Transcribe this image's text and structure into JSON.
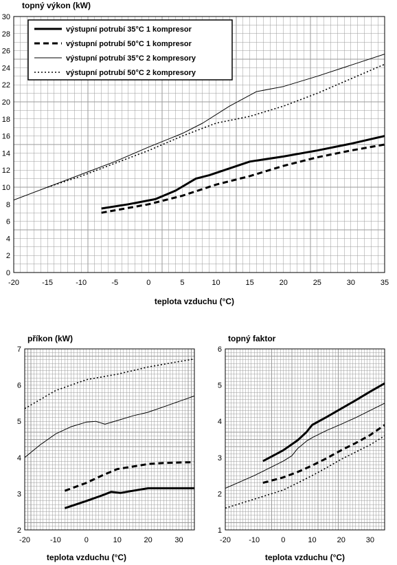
{
  "chart_data": [
    {
      "type": "line",
      "ylabel": "topný výkon (kW)",
      "xlabel": "teplota vzduchu (°C)",
      "xlim": [
        -20,
        35
      ],
      "ylim": [
        0,
        30
      ],
      "x_ticks": [
        -20,
        -15,
        -10,
        -5,
        0,
        5,
        10,
        15,
        20,
        25,
        30,
        35
      ],
      "y_ticks": [
        0,
        2,
        4,
        6,
        8,
        10,
        12,
        14,
        16,
        18,
        20,
        22,
        24,
        26,
        28,
        30
      ],
      "grid": true,
      "legend_position": "top-left",
      "series": [
        {
          "name": "výstupní  potrubí 35°C 1 kompresor",
          "style": "thick-solid",
          "points": [
            [
              -7,
              7.5
            ],
            [
              -3,
              8.0
            ],
            [
              1,
              8.6
            ],
            [
              4,
              9.6
            ],
            [
              7,
              11.0
            ],
            [
              9,
              11.4
            ],
            [
              12,
              12.2
            ],
            [
              15,
              13.0
            ],
            [
              20,
              13.6
            ],
            [
              25,
              14.3
            ],
            [
              30,
              15.1
            ],
            [
              35,
              16.0
            ]
          ]
        },
        {
          "name": "výstupní  potrubí 50°C 1 kompresor",
          "style": "thick-dashed",
          "points": [
            [
              -7,
              7.0
            ],
            [
              0,
              8.0
            ],
            [
              5,
              9.0
            ],
            [
              10,
              10.3
            ],
            [
              15,
              11.3
            ],
            [
              20,
              12.5
            ],
            [
              25,
              13.5
            ],
            [
              30,
              14.3
            ],
            [
              35,
              15.0
            ]
          ]
        },
        {
          "name": "výstupní  potrubí 35°C 2 kompresory",
          "style": "thin-solid",
          "points": [
            [
              -20,
              8.5
            ],
            [
              -10,
              11.5
            ],
            [
              -5,
              13.0
            ],
            [
              0,
              14.7
            ],
            [
              5,
              16.3
            ],
            [
              8,
              17.5
            ],
            [
              12,
              19.5
            ],
            [
              16,
              21.2
            ],
            [
              20,
              21.8
            ],
            [
              25,
              23.0
            ],
            [
              30,
              24.3
            ],
            [
              35,
              25.6
            ]
          ]
        },
        {
          "name": "výstupní  potrubí 50°C 2 kompresory",
          "style": "thin-dotted",
          "points": [
            [
              -15,
              10.0
            ],
            [
              -10,
              11.3
            ],
            [
              -5,
              12.8
            ],
            [
              0,
              14.3
            ],
            [
              5,
              16.0
            ],
            [
              10,
              17.5
            ],
            [
              15,
              18.3
            ],
            [
              20,
              19.5
            ],
            [
              25,
              21.0
            ],
            [
              30,
              22.7
            ],
            [
              35,
              24.4
            ]
          ]
        }
      ]
    },
    {
      "type": "line",
      "ylabel": "příkon (kW)",
      "xlabel": "teplota vzduchu (°C)",
      "xlim": [
        -20,
        35
      ],
      "ylim": [
        2,
        7
      ],
      "x_ticks": [
        -20,
        -10,
        0,
        10,
        20,
        30
      ],
      "y_ticks": [
        2,
        3,
        4,
        5,
        6,
        7
      ],
      "grid": true,
      "series": [
        {
          "style": "thick-solid",
          "points": [
            [
              -7,
              2.6
            ],
            [
              0,
              2.8
            ],
            [
              5,
              2.95
            ],
            [
              8,
              3.05
            ],
            [
              11,
              3.02
            ],
            [
              15,
              3.08
            ],
            [
              20,
              3.15
            ],
            [
              35,
              3.15
            ]
          ]
        },
        {
          "style": "thick-dashed",
          "points": [
            [
              -7,
              3.08
            ],
            [
              0,
              3.3
            ],
            [
              5,
              3.5
            ],
            [
              10,
              3.68
            ],
            [
              15,
              3.75
            ],
            [
              20,
              3.82
            ],
            [
              25,
              3.85
            ],
            [
              35,
              3.87
            ]
          ]
        },
        {
          "style": "thin-solid",
          "points": [
            [
              -20,
              4.0
            ],
            [
              -15,
              4.35
            ],
            [
              -10,
              4.65
            ],
            [
              -5,
              4.85
            ],
            [
              0,
              4.98
            ],
            [
              3,
              5.0
            ],
            [
              6,
              4.92
            ],
            [
              10,
              5.02
            ],
            [
              15,
              5.15
            ],
            [
              20,
              5.25
            ],
            [
              25,
              5.4
            ],
            [
              30,
              5.55
            ],
            [
              35,
              5.7
            ]
          ]
        },
        {
          "style": "thin-dotted",
          "points": [
            [
              -20,
              5.35
            ],
            [
              -10,
              5.85
            ],
            [
              0,
              6.15
            ],
            [
              10,
              6.3
            ],
            [
              20,
              6.5
            ],
            [
              30,
              6.65
            ],
            [
              35,
              6.72
            ]
          ]
        }
      ]
    },
    {
      "type": "line",
      "ylabel": "topný faktor",
      "xlabel": "teplota vzduchu (°C)",
      "xlim": [
        -20,
        35
      ],
      "ylim": [
        1,
        6
      ],
      "x_ticks": [
        -20,
        -10,
        0,
        10,
        20,
        30
      ],
      "y_ticks": [
        1,
        2,
        3,
        4,
        5,
        6
      ],
      "grid": true,
      "series": [
        {
          "style": "thick-solid",
          "points": [
            [
              -7,
              2.9
            ],
            [
              0,
              3.2
            ],
            [
              5,
              3.48
            ],
            [
              8,
              3.7
            ],
            [
              10,
              3.9
            ],
            [
              15,
              4.12
            ],
            [
              20,
              4.35
            ],
            [
              25,
              4.58
            ],
            [
              30,
              4.82
            ],
            [
              35,
              5.05
            ]
          ]
        },
        {
          "style": "thick-dashed",
          "points": [
            [
              -7,
              2.3
            ],
            [
              0,
              2.45
            ],
            [
              5,
              2.6
            ],
            [
              10,
              2.78
            ],
            [
              15,
              2.98
            ],
            [
              20,
              3.2
            ],
            [
              25,
              3.4
            ],
            [
              30,
              3.62
            ],
            [
              35,
              3.9
            ]
          ]
        },
        {
          "style": "thin-solid",
          "points": [
            [
              -20,
              2.15
            ],
            [
              -10,
              2.5
            ],
            [
              -5,
              2.7
            ],
            [
              0,
              2.9
            ],
            [
              3,
              3.05
            ],
            [
              5,
              3.25
            ],
            [
              8,
              3.45
            ],
            [
              10,
              3.55
            ],
            [
              15,
              3.75
            ],
            [
              20,
              3.92
            ],
            [
              25,
              4.1
            ],
            [
              30,
              4.3
            ],
            [
              35,
              4.5
            ]
          ]
        },
        {
          "style": "thin-dotted",
          "points": [
            [
              -20,
              1.6
            ],
            [
              -10,
              1.85
            ],
            [
              0,
              2.1
            ],
            [
              5,
              2.3
            ],
            [
              10,
              2.5
            ],
            [
              15,
              2.72
            ],
            [
              20,
              2.95
            ],
            [
              25,
              3.15
            ],
            [
              30,
              3.35
            ],
            [
              35,
              3.6
            ]
          ]
        }
      ]
    }
  ]
}
